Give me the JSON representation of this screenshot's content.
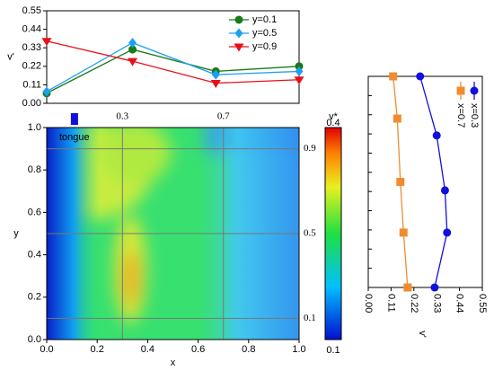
{
  "chart_data": [
    {
      "type": "line",
      "ylabel": "v'",
      "x": [
        0,
        0.34,
        0.67,
        1.0
      ],
      "xlim": [
        0,
        1
      ],
      "ylim": [
        0,
        0.55
      ],
      "yticks": [
        {
          "value": 0,
          "label": "0.00"
        },
        0.11,
        0.22,
        0.33,
        0.44,
        0.55
      ],
      "legend": "upper right",
      "series": [
        {
          "name": "y=0.1",
          "color": "#1a7a1a",
          "marker": "circle",
          "values": [
            0.06,
            0.32,
            0.19,
            0.22
          ]
        },
        {
          "name": "y=0.5",
          "color": "#1ea0f0",
          "marker": "diamond",
          "values": [
            0.07,
            0.36,
            0.17,
            0.19
          ]
        },
        {
          "name": "y=0.9",
          "color": "#e8101a",
          "marker": "triangle-down",
          "values": [
            0.37,
            0.25,
            0.12,
            0.14
          ]
        }
      ]
    },
    {
      "type": "heatmap",
      "xlabel": "x",
      "ylabel": "y",
      "xlim": [
        0,
        1
      ],
      "ylim": [
        0,
        1
      ],
      "xticks": [
        {
          "value": 0,
          "label": "0.0"
        },
        0.2,
        0.4,
        0.6,
        0.8,
        {
          "value": 1,
          "label": "1.0"
        }
      ],
      "yticks": [
        {
          "value": 0,
          "label": "0.0"
        },
        0.2,
        0.4,
        0.6,
        0.8,
        {
          "value": 1,
          "label": "1.0"
        }
      ],
      "guide_x": [
        0.3,
        0.7
      ],
      "guide_y": [
        0.9,
        0.5,
        0.1
      ],
      "annotation": "tongue",
      "tongue_x": 0.11,
      "colorbar": {
        "title": "v*",
        "lim": [
          0.1,
          0.4
        ],
        "ticks": [
          0.4,
          0.1
        ]
      }
    },
    {
      "type": "line_vertical",
      "xlabel": "v'",
      "xlim": [
        0,
        0.55
      ],
      "ylim": [
        0,
        1
      ],
      "xticks": [
        {
          "value": 0,
          "label": "0.00"
        },
        0.11,
        0.22,
        0.33,
        0.44,
        0.55
      ],
      "series": [
        {
          "name": "x=0.3",
          "color": "#1010e0",
          "marker": "circle",
          "values": [
            0.25,
            0.33,
            0.37,
            0.38,
            0.32
          ],
          "y": [
            1.0,
            0.72,
            0.46,
            0.26,
            0.0
          ]
        },
        {
          "name": "x=0.7",
          "color": "#f08c30",
          "marker": "square",
          "values": [
            0.12,
            0.14,
            0.155,
            0.17,
            0.19
          ],
          "y": [
            1.0,
            0.8,
            0.5,
            0.26,
            0.0
          ]
        }
      ]
    }
  ]
}
